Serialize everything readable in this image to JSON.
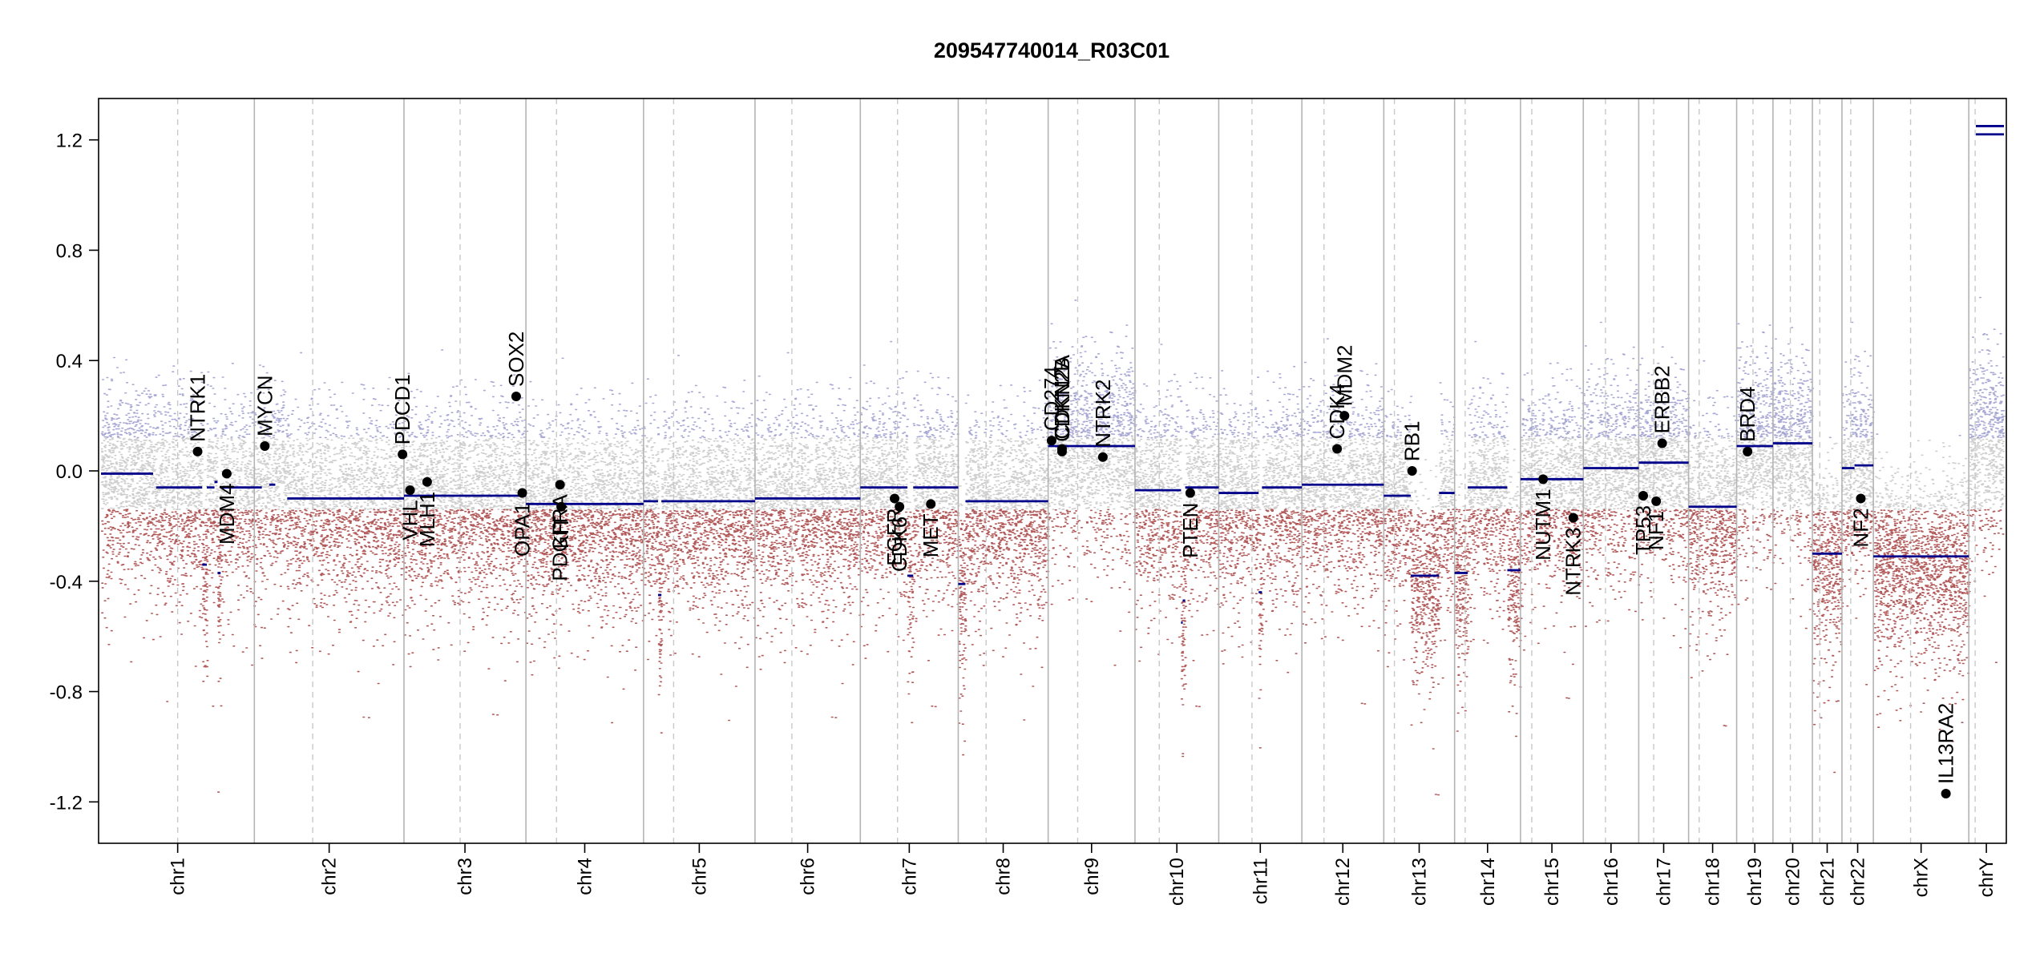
{
  "chart_data": {
    "type": "scatter",
    "title": "209547740014_R03C01",
    "xlabel": "",
    "ylabel": "",
    "ylim": [
      -1.35,
      1.35
    ],
    "yticks": [
      "1.2",
      "0.8",
      "0.4",
      "0.0",
      "-0.4",
      "-0.8",
      "-1.2"
    ],
    "ytick_values": [
      1.2,
      0.8,
      0.4,
      0.0,
      -0.4,
      -0.8,
      -1.2
    ],
    "colors": {
      "segment": "#00008b",
      "gain": "#8c8cc8",
      "loss": "#a03232",
      "neutral": "#bebebe",
      "gene": "#000000",
      "boundary": "#b4b4b4"
    },
    "chromosomes": [
      {
        "name": "chr1",
        "size": 249,
        "centromere": 0.5
      },
      {
        "name": "chr2",
        "size": 243,
        "centromere": 0.39
      },
      {
        "name": "chr3",
        "size": 198,
        "centromere": 0.46
      },
      {
        "name": "chr4",
        "size": 191,
        "centromere": 0.26
      },
      {
        "name": "chr5",
        "size": 181,
        "centromere": 0.27
      },
      {
        "name": "chr6",
        "size": 171,
        "centromere": 0.35
      },
      {
        "name": "chr7",
        "size": 159,
        "centromere": 0.38
      },
      {
        "name": "chr8",
        "size": 146,
        "centromere": 0.31
      },
      {
        "name": "chr9",
        "size": 141,
        "centromere": 0.34
      },
      {
        "name": "chr10",
        "size": 136,
        "centromere": 0.29
      },
      {
        "name": "chr11",
        "size": 135,
        "centromere": 0.4
      },
      {
        "name": "chr12",
        "size": 133,
        "centromere": 0.27
      },
      {
        "name": "chr13",
        "size": 115,
        "centromere": 0.15
      },
      {
        "name": "chr14",
        "size": 107,
        "centromere": 0.16
      },
      {
        "name": "chr15",
        "size": 102,
        "centromere": 0.18
      },
      {
        "name": "chr16",
        "size": 90,
        "centromere": 0.4
      },
      {
        "name": "chr17",
        "size": 81,
        "centromere": 0.3
      },
      {
        "name": "chr18",
        "size": 78,
        "centromere": 0.22
      },
      {
        "name": "chr19",
        "size": 59,
        "centromere": 0.45
      },
      {
        "name": "chr20",
        "size": 64,
        "centromere": 0.44
      },
      {
        "name": "chr21",
        "size": 48,
        "centromere": 0.25
      },
      {
        "name": "chr22",
        "size": 51,
        "centromere": 0.28
      },
      {
        "name": "chrX",
        "size": 155,
        "centromere": 0.39
      },
      {
        "name": "chrY",
        "size": 57,
        "centromere": 0.18
      }
    ],
    "segments": [
      {
        "chr": "chr1",
        "from": 0,
        "to": 0.34,
        "value": -0.01
      },
      {
        "chr": "chr1",
        "from": 0.36,
        "to": 0.66,
        "value": -0.06
      },
      {
        "chr": "chr1",
        "from": 0.66,
        "to": 0.69,
        "value": -0.34
      },
      {
        "chr": "chr1",
        "from": 0.69,
        "to": 0.74,
        "value": -0.06
      },
      {
        "chr": "chr1",
        "from": 0.74,
        "to": 0.76,
        "value": -0.04
      },
      {
        "chr": "chr1",
        "from": 0.76,
        "to": 0.78,
        "value": -0.37
      },
      {
        "chr": "chr1",
        "from": 0.78,
        "to": 1.0,
        "value": -0.06
      },
      {
        "chr": "chr2",
        "from": 0,
        "to": 0.05,
        "value": -0.06
      },
      {
        "chr": "chr2",
        "from": 0.1,
        "to": 0.14,
        "value": -0.05
      },
      {
        "chr": "chr2",
        "from": 0.22,
        "to": 1.0,
        "value": -0.1
      },
      {
        "chr": "chr3",
        "from": 0,
        "to": 1.0,
        "value": -0.09
      },
      {
        "chr": "chr4",
        "from": 0,
        "to": 1.0,
        "value": -0.12
      },
      {
        "chr": "chr5",
        "from": 0,
        "to": 0.13,
        "value": -0.11
      },
      {
        "chr": "chr5",
        "from": 0.13,
        "to": 0.16,
        "value": -0.45
      },
      {
        "chr": "chr5",
        "from": 0.16,
        "to": 1.0,
        "value": -0.11
      },
      {
        "chr": "chr6",
        "from": 0,
        "to": 1.0,
        "value": -0.1
      },
      {
        "chr": "chr7",
        "from": 0,
        "to": 0.48,
        "value": -0.06
      },
      {
        "chr": "chr7",
        "from": 0.48,
        "to": 0.54,
        "value": -0.38
      },
      {
        "chr": "chr7",
        "from": 0.54,
        "to": 1.0,
        "value": -0.06
      },
      {
        "chr": "chr8",
        "from": 0,
        "to": 0.08,
        "value": -0.41
      },
      {
        "chr": "chr8",
        "from": 0.08,
        "to": 1.0,
        "value": -0.11
      },
      {
        "chr": "chr9",
        "from": 0,
        "to": 1.0,
        "value": 0.09
      },
      {
        "chr": "chr10",
        "from": 0,
        "to": 0.55,
        "value": -0.07
      },
      {
        "chr": "chr10",
        "from": 0.55,
        "to": 0.57,
        "value": -0.55
      },
      {
        "chr": "chr10",
        "from": 0.57,
        "to": 0.6,
        "value": -0.47
      },
      {
        "chr": "chr10",
        "from": 0.6,
        "to": 1.0,
        "value": -0.06
      },
      {
        "chr": "chr11",
        "from": 0,
        "to": 0.48,
        "value": -0.08
      },
      {
        "chr": "chr11",
        "from": 0.48,
        "to": 0.52,
        "value": -0.44
      },
      {
        "chr": "chr11",
        "from": 0.52,
        "to": 1.0,
        "value": -0.06
      },
      {
        "chr": "chr12",
        "from": 0,
        "to": 1.0,
        "value": -0.05
      },
      {
        "chr": "chr13",
        "from": 0,
        "to": 0.38,
        "value": -0.09
      },
      {
        "chr": "chr13",
        "from": 0.38,
        "to": 0.78,
        "value": -0.38
      },
      {
        "chr": "chr13",
        "from": 0.78,
        "to": 1.0,
        "value": -0.08
      },
      {
        "chr": "chr14",
        "from": 0,
        "to": 0.2,
        "value": -0.37
      },
      {
        "chr": "chr14",
        "from": 0.2,
        "to": 0.8,
        "value": -0.06
      },
      {
        "chr": "chr14",
        "from": 0.8,
        "to": 1.0,
        "value": -0.36
      },
      {
        "chr": "chr15",
        "from": 0,
        "to": 1.0,
        "value": -0.03
      },
      {
        "chr": "chr16",
        "from": 0,
        "to": 1.0,
        "value": 0.01
      },
      {
        "chr": "chr17",
        "from": 0,
        "to": 1.0,
        "value": 0.03
      },
      {
        "chr": "chr18",
        "from": 0,
        "to": 1.0,
        "value": -0.13
      },
      {
        "chr": "chr19",
        "from": 0,
        "to": 1.0,
        "value": 0.09
      },
      {
        "chr": "chr20",
        "from": 0,
        "to": 1.0,
        "value": 0.1
      },
      {
        "chr": "chr21",
        "from": 0,
        "to": 1.0,
        "value": -0.3
      },
      {
        "chr": "chr22",
        "from": 0,
        "to": 0.4,
        "value": 0.01
      },
      {
        "chr": "chr22",
        "from": 0.4,
        "to": 1.0,
        "value": 0.02
      },
      {
        "chr": "chrX",
        "from": 0,
        "to": 1.0,
        "value": -0.31
      },
      {
        "chr": "chrY",
        "from": 0.2,
        "to": 1.0,
        "value": 1.25
      },
      {
        "chr": "chrY",
        "from": 0.2,
        "to": 1.0,
        "value": 1.22
      }
    ],
    "genes": [
      {
        "name": "NTRK1",
        "chr": "chr1",
        "pos": 0.63,
        "value": 0.07,
        "side": "above"
      },
      {
        "name": "MDM4",
        "chr": "chr1",
        "pos": 0.82,
        "value": -0.01,
        "side": "below"
      },
      {
        "name": "MYCN",
        "chr": "chr2",
        "pos": 0.07,
        "value": 0.09,
        "side": "above"
      },
      {
        "name": "PDCD1",
        "chr": "chr2",
        "pos": 0.99,
        "value": 0.06,
        "side": "above"
      },
      {
        "name": "VHL",
        "chr": "chr3",
        "pos": 0.05,
        "value": -0.07,
        "side": "below"
      },
      {
        "name": "MLH1",
        "chr": "chr3",
        "pos": 0.19,
        "value": -0.04,
        "side": "below"
      },
      {
        "name": "SOX2",
        "chr": "chr3",
        "pos": 0.92,
        "value": 0.27,
        "side": "above"
      },
      {
        "name": "OPA1",
        "chr": "chr3",
        "pos": 0.97,
        "value": -0.08,
        "side": "below"
      },
      {
        "name": "PDGFRA",
        "chr": "chr4",
        "pos": 0.29,
        "value": -0.05,
        "side": "below"
      },
      {
        "name": "KIT",
        "chr": "chr4",
        "pos": 0.3,
        "value": -0.13,
        "side": "below"
      },
      {
        "name": "EGFR",
        "chr": "chr7",
        "pos": 0.35,
        "value": -0.1,
        "side": "below"
      },
      {
        "name": "CDK6",
        "chr": "chr7",
        "pos": 0.4,
        "value": -0.13,
        "side": "below"
      },
      {
        "name": "MET",
        "chr": "chr7",
        "pos": 0.72,
        "value": -0.12,
        "side": "below"
      },
      {
        "name": "CD274",
        "chr": "chr9",
        "pos": 0.04,
        "value": 0.11,
        "side": "above"
      },
      {
        "name": "CDKN2A",
        "chr": "chr9",
        "pos": 0.16,
        "value": 0.08,
        "side": "above"
      },
      {
        "name": "CDKN2B",
        "chr": "chr9",
        "pos": 0.16,
        "value": 0.07,
        "side": "above"
      },
      {
        "name": "NTRK2",
        "chr": "chr9",
        "pos": 0.63,
        "value": 0.05,
        "side": "above"
      },
      {
        "name": "PTEN",
        "chr": "chr10",
        "pos": 0.66,
        "value": -0.08,
        "side": "below"
      },
      {
        "name": "CDK4",
        "chr": "chr12",
        "pos": 0.43,
        "value": 0.08,
        "side": "above"
      },
      {
        "name": "MDM2",
        "chr": "chr12",
        "pos": 0.52,
        "value": 0.2,
        "side": "above"
      },
      {
        "name": "RB1",
        "chr": "chr13",
        "pos": 0.4,
        "value": 0.0,
        "side": "above"
      },
      {
        "name": "NUTM1",
        "chr": "chr15",
        "pos": 0.36,
        "value": -0.03,
        "side": "below"
      },
      {
        "name": "NTRK3",
        "chr": "chr15",
        "pos": 0.84,
        "value": -0.17,
        "side": "below"
      },
      {
        "name": "TP53",
        "chr": "chr17",
        "pos": 0.09,
        "value": -0.09,
        "side": "below"
      },
      {
        "name": "NF1",
        "chr": "chr17",
        "pos": 0.35,
        "value": -0.11,
        "side": "below"
      },
      {
        "name": "ERBB2",
        "chr": "chr17",
        "pos": 0.47,
        "value": 0.1,
        "side": "above"
      },
      {
        "name": "BRD4",
        "chr": "chr19",
        "pos": 0.3,
        "value": 0.07,
        "side": "above"
      },
      {
        "name": "NF2",
        "chr": "chr22",
        "pos": 0.6,
        "value": -0.1,
        "side": "below"
      },
      {
        "name": "IL13RA2",
        "chr": "chrX",
        "pos": 0.76,
        "value": -1.17,
        "side": "above"
      }
    ]
  }
}
